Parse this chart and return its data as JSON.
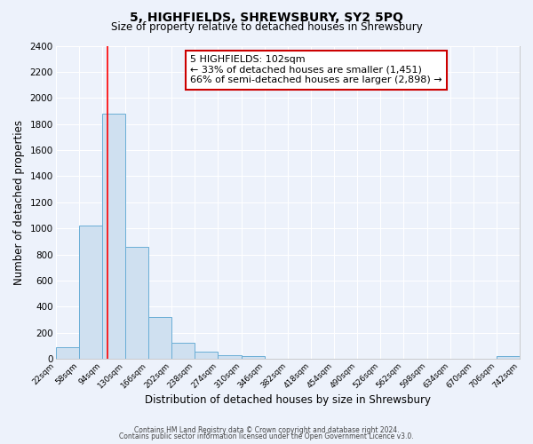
{
  "title": "5, HIGHFIELDS, SHREWSBURY, SY2 5PQ",
  "subtitle": "Size of property relative to detached houses in Shrewsbury",
  "xlabel": "Distribution of detached houses by size in Shrewsbury",
  "ylabel": "Number of detached properties",
  "bar_color": "#cfe0f0",
  "bar_edge_color": "#6aaed6",
  "background_color": "#edf2fb",
  "grid_color": "#ffffff",
  "red_line_x": 102,
  "bin_edges": [
    22,
    58,
    94,
    130,
    166,
    202,
    238,
    274,
    310,
    346,
    382,
    418,
    454,
    490,
    526,
    562,
    598,
    634,
    670,
    706,
    742
  ],
  "bin_labels": [
    "22sqm",
    "58sqm",
    "94sqm",
    "130sqm",
    "166sqm",
    "202sqm",
    "238sqm",
    "274sqm",
    "310sqm",
    "346sqm",
    "382sqm",
    "418sqm",
    "454sqm",
    "490sqm",
    "526sqm",
    "562sqm",
    "598sqm",
    "634sqm",
    "670sqm",
    "706sqm",
    "742sqm"
  ],
  "bar_heights": [
    90,
    1020,
    1880,
    860,
    320,
    120,
    52,
    30,
    20,
    0,
    0,
    0,
    0,
    0,
    0,
    0,
    0,
    0,
    0,
    18,
    0
  ],
  "ylim": [
    0,
    2400
  ],
  "yticks": [
    0,
    200,
    400,
    600,
    800,
    1000,
    1200,
    1400,
    1600,
    1800,
    2000,
    2200,
    2400
  ],
  "annotation_title": "5 HIGHFIELDS: 102sqm",
  "annotation_line1": "← 33% of detached houses are smaller (1,451)",
  "annotation_line2": "66% of semi-detached houses are larger (2,898) →",
  "annotation_box_color": "#ffffff",
  "annotation_box_edge_color": "#cc0000",
  "footer_line1": "Contains HM Land Registry data © Crown copyright and database right 2024.",
  "footer_line2": "Contains public sector information licensed under the Open Government Licence v3.0."
}
